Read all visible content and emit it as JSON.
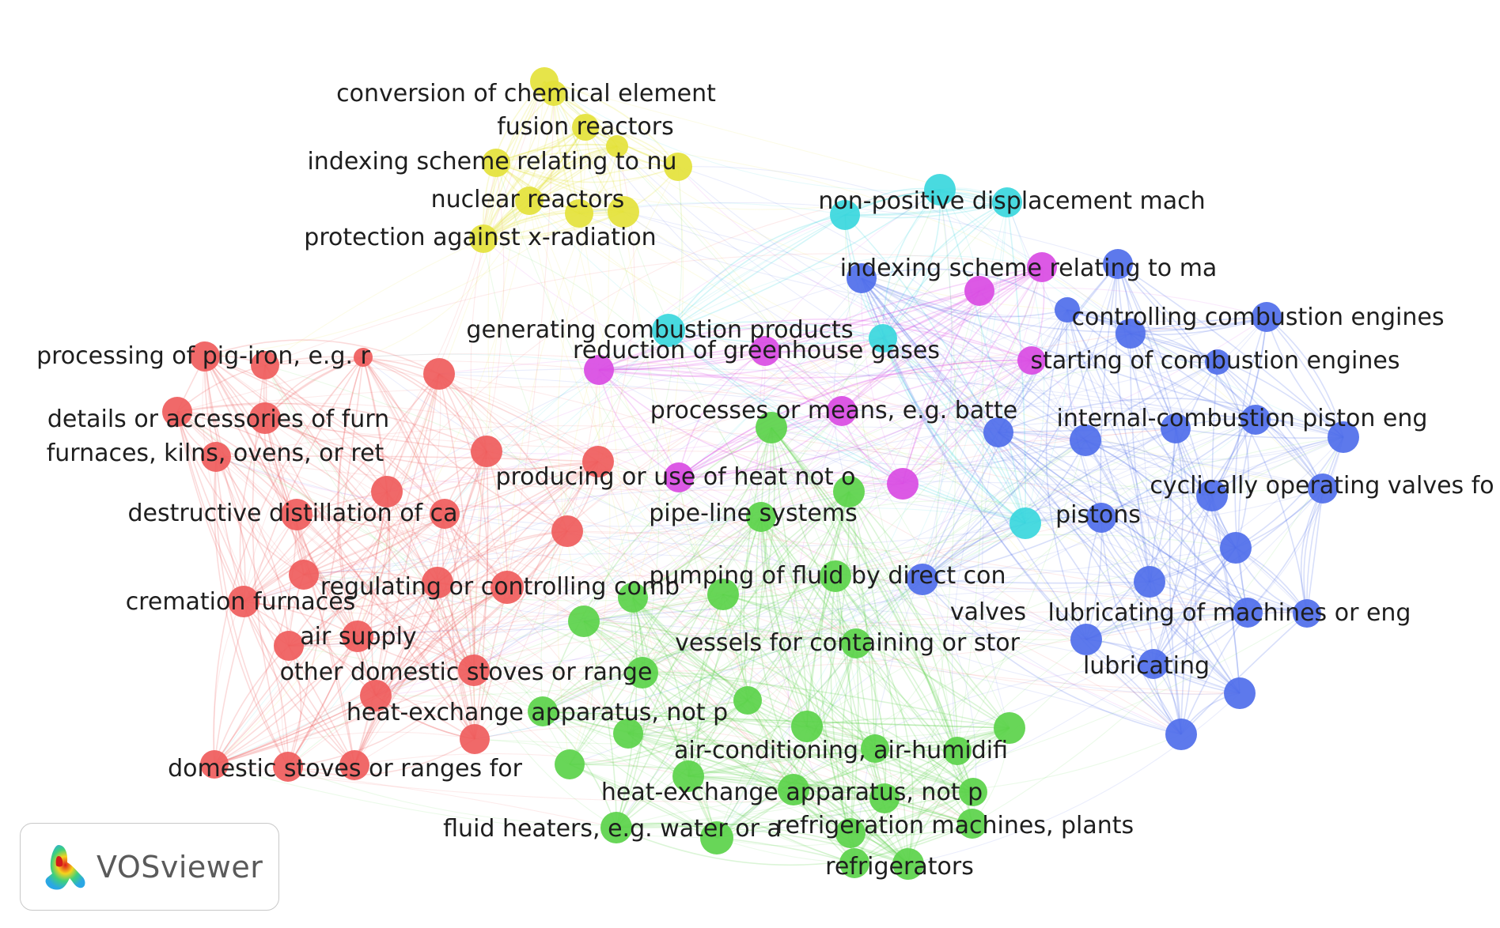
{
  "branding": {
    "name": "VOSviewer"
  },
  "colors": {
    "red": "#ef5c5c",
    "yellow": "#e4e23b",
    "cyan": "#3ad7dd",
    "magenta": "#d94be3",
    "blue": "#4f6eea",
    "green": "#5bd34a"
  },
  "labels": [
    "conversion of chemical element",
    "fusion reactors",
    "indexing scheme relating to nu",
    "nuclear reactors",
    "protection against x-radiation",
    "non-positive displacement mach",
    "indexing scheme relating to ma",
    "controlling combustion engines",
    "generating combustion products",
    "reduction of greenhouse gases",
    "starting of combustion engines",
    "processing of pig-iron, e.g. r",
    "details or accessories of furn",
    "processes or means, e.g. batte",
    "internal-combustion piston eng",
    "furnaces, kilns, ovens, or ret",
    "producing or use of heat not o",
    "cyclically operating valves fo",
    "destructive distillation of ca",
    "pipe-line systems",
    "pistons",
    "pumping of fluid by direct con",
    "regulating or controlling comb",
    "cremation furnaces",
    "valves",
    "lubricating of machines or eng",
    "air supply",
    "vessels for containing or stor",
    "lubricating",
    "other domestic stoves or range",
    "heat-exchange apparatus, not p",
    "air-conditioning, air-humidifi",
    "domestic stoves or ranges for",
    "heat-exchange apparatus, not p",
    "fluid heaters, e.g. water or a",
    "refrigeration machines, plants",
    "refrigerators"
  ]
}
